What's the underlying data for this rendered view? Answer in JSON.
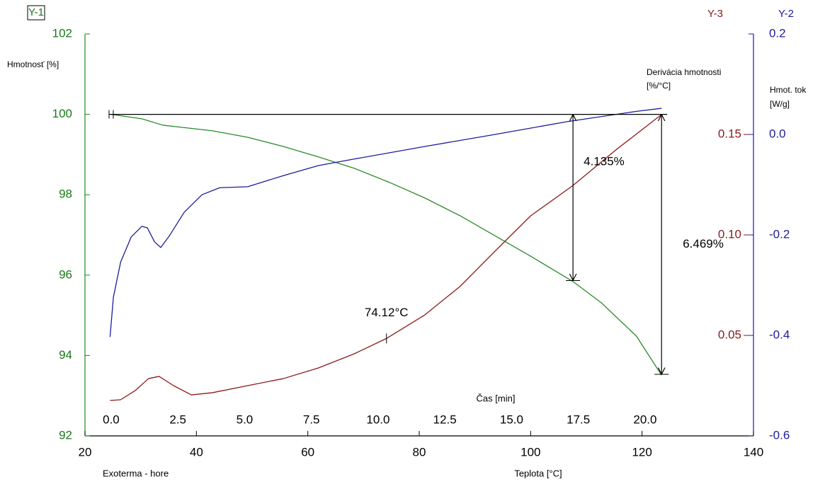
{
  "chart_data": {
    "type": "line",
    "title": "Y-1",
    "y2_title": "Y-2",
    "y3_title": "Y-3",
    "ylabel": "Hmotnosť [%]",
    "y3label": [
      "Derivácia hmotnosti",
      "[%/°C]"
    ],
    "y2label": [
      "Hmot. tok",
      "[W/g]"
    ],
    "xlabel": "Teplota [°C]",
    "x2label": "Čas [min]",
    "note": "Exoterma - hore",
    "xlim": [
      20,
      140
    ],
    "xticks": [
      20,
      40,
      60,
      80,
      100,
      120,
      140
    ],
    "x2lim": [
      -0.98,
      24.06
    ],
    "x2ticks": [
      {
        "value": 0,
        "label": "0.0"
      },
      2.5,
      {
        "value": 5,
        "label": "5.0"
      },
      7.5,
      {
        "value": 10,
        "label": "10.0"
      },
      12.5,
      {
        "value": 15,
        "label": "15.0"
      },
      17.5,
      {
        "value": 20,
        "label": "20.0"
      }
    ],
    "ylim": [
      92,
      102
    ],
    "yticks": [
      92,
      94,
      96,
      98,
      100,
      102
    ],
    "y2lim": [
      -0.6,
      0.2
    ],
    "y2ticks": [
      -0.6,
      -0.4,
      -0.2,
      {
        "value": 0,
        "label": "0.0"
      },
      0.2
    ],
    "y3lim": [
      0,
      0.2
    ],
    "y3ticks": [
      0.05,
      {
        "value": 0.1,
        "label": "0.10"
      },
      0.15
    ],
    "series": [
      {
        "color": "#2a8a2a",
        "axis": "y",
        "x": [
          24.7,
          30.2,
          34,
          42.9,
          49.2,
          55.6,
          61.9,
          68.3,
          74.6,
          81,
          87.3,
          93.6,
          100,
          107.6,
          112.7,
          119,
          123.5
        ],
        "values": [
          100,
          99.89,
          99.73,
          99.59,
          99.43,
          99.2,
          98.94,
          98.66,
          98.31,
          97.92,
          97.48,
          96.98,
          96.47,
          95.84,
          95.31,
          94.48,
          93.51
        ]
      },
      {
        "color": "#1c1c9c",
        "axis": "y2",
        "x": [
          24.5,
          25.1,
          26.4,
          28.3,
          30.2,
          31.2,
          32.5,
          33.6,
          35.2,
          37.8,
          41,
          44.2,
          49.2,
          55.6,
          61.9,
          68.3,
          81,
          93.6,
          106.3,
          119,
          123.5
        ],
        "values": [
          -0.403,
          -0.324,
          -0.254,
          -0.204,
          -0.183,
          -0.186,
          -0.214,
          -0.225,
          -0.201,
          -0.155,
          -0.12,
          -0.106,
          -0.104,
          -0.082,
          -0.062,
          -0.049,
          -0.024,
          0,
          0.025,
          0.046,
          0.052
        ]
      },
      {
        "color": "#8b1a1a",
        "axis": "y3",
        "x": [
          24.5,
          26.4,
          29,
          31.4,
          33.3,
          35.9,
          39.1,
          42.9,
          49.2,
          55.6,
          61.9,
          68.3,
          74.2,
          81,
          87.3,
          93.6,
          100,
          107.6,
          115.3,
          123.5
        ],
        "values": [
          0.0176,
          0.018,
          0.0225,
          0.0285,
          0.0296,
          0.025,
          0.0204,
          0.0215,
          0.025,
          0.0285,
          0.0338,
          0.0408,
          0.0486,
          0.0602,
          0.0743,
          0.0919,
          0.1095,
          0.1246,
          0.1423,
          0.1599
        ]
      }
    ],
    "annotations": [
      {
        "text": "4.135%",
        "x": 107.6,
        "y1": 100,
        "y2": 95.865
      },
      {
        "text": "6.469%",
        "x": 123.5,
        "y1": 100,
        "y2": 93.531
      },
      {
        "text": "74.12°C",
        "x": 74.12
      }
    ]
  }
}
